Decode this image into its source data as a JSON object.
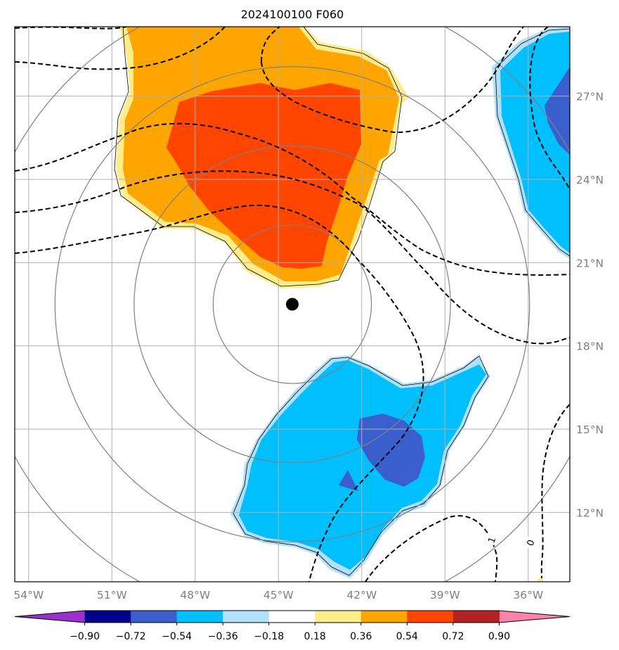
{
  "title": "2024100100 F060",
  "map": {
    "lon_range": [
      -54.5,
      -34.5
    ],
    "lat_range": [
      9.5,
      29.5
    ],
    "lon_ticks": [
      {
        "lon": -54,
        "label": "54°W"
      },
      {
        "lon": -51,
        "label": "51°W"
      },
      {
        "lon": -48,
        "label": "48°W"
      },
      {
        "lon": -45,
        "label": "45°W"
      },
      {
        "lon": -42,
        "label": "42°W"
      },
      {
        "lon": -39,
        "label": "39°W"
      },
      {
        "lon": -36,
        "label": "36°W"
      }
    ],
    "lat_ticks": [
      {
        "lat": 27,
        "label": "27°N"
      },
      {
        "lat": 24,
        "label": "24°N"
      },
      {
        "lat": 21,
        "label": "21°N"
      },
      {
        "lat": 18,
        "label": "18°N"
      },
      {
        "lat": 15,
        "label": "15°N"
      },
      {
        "lat": 12,
        "label": "12°N"
      }
    ],
    "gridlines": true,
    "storm_center": {
      "lon": -44.5,
      "lat": 19.5
    },
    "range_rings_deg": [
      2.85,
      5.7,
      8.55,
      11.4
    ],
    "contour_labels": [
      {
        "text": "1",
        "lon": -37.3,
        "lat": 11.0
      },
      {
        "text": "0",
        "lon": -35.9,
        "lat": 10.9
      }
    ]
  },
  "colorbar": {
    "levels": [
      "-0.90",
      "-0.72",
      "-0.54",
      "-0.36",
      "-0.18",
      "0.18",
      "0.36",
      "0.54",
      "0.72",
      "0.90"
    ],
    "display_labels": [
      "−0.90",
      "−0.72",
      "−0.54",
      "−0.36",
      "−0.18",
      "0.18",
      "0.36",
      "0.54",
      "0.72",
      "0.90"
    ],
    "colors": [
      "#9932cc",
      "#00008b",
      "#3a5fcd",
      "#00bfff",
      "#b0e0fa",
      "#ffffff",
      "#ffec8b",
      "#ffa500",
      "#ff4500",
      "#b22222",
      "#ff82ab"
    ],
    "extend": "both"
  }
}
